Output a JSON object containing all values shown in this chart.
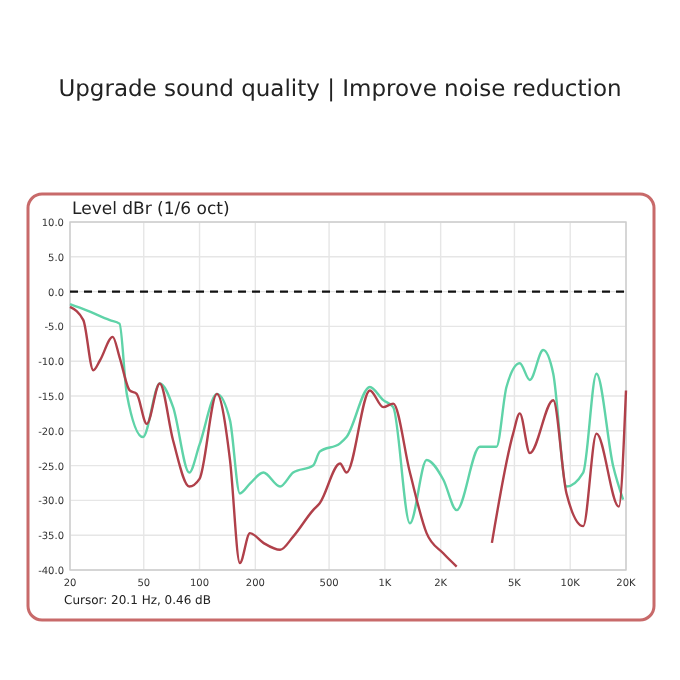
{
  "chart_data": {
    "type": "line",
    "title": "Upgrade sound quality | Improve noise reduction",
    "subtitle": "Level dBr (1/6 oct)",
    "annotations": [
      "Cursor: 20.1 Hz, 0.46 dB"
    ],
    "log": "x",
    "grid": true,
    "marker": "none",
    "line_style": "solid",
    "xlim": [
      20,
      20000
    ],
    "ylim": [
      -40,
      10
    ],
    "xticks": [
      20,
      50,
      100,
      200,
      500,
      {
        "value": 1000,
        "label": "1K"
      },
      {
        "value": 2000,
        "label": "2K"
      },
      {
        "value": 5000,
        "label": "5K"
      },
      {
        "value": 10000,
        "label": "10K"
      },
      {
        "value": 20000,
        "label": "20K"
      }
    ],
    "yticks": [
      {
        "value": 10,
        "label": "10.0"
      },
      {
        "value": 5,
        "label": "5.0"
      },
      {
        "value": 0,
        "label": "0.0"
      },
      {
        "value": -5,
        "label": "-5.0"
      },
      {
        "value": -10,
        "label": "-10.0"
      },
      {
        "value": -15,
        "label": "-15.0"
      },
      {
        "value": -20,
        "label": "-20.0"
      },
      {
        "value": -25,
        "label": "-25.0"
      },
      {
        "value": -30,
        "label": "-30.0"
      },
      {
        "value": -35,
        "label": "-35.0"
      },
      {
        "value": -40,
        "label": "-40.0"
      }
    ],
    "ref_lines": [
      {
        "axis": "y",
        "value": 0,
        "color": "#111111",
        "line_style": "dashed"
      }
    ],
    "series": [
      {
        "color": "#5fd3a8",
        "x": [
          20,
          24.6,
          32.8,
          37,
          40.5,
          49.5,
          61,
          72,
          88,
          100,
          124,
          146,
          165,
          187,
          221,
          272,
          320,
          410,
          445,
          573,
          621,
          830,
          980,
          1109,
          1365,
          1679,
          2065,
          2440,
          3253,
          4000,
          4530,
          5345,
          6055,
          7150,
          8100,
          9550,
          11750,
          13860,
          17060,
          19300
        ],
        "values": [
          -1.8,
          -2.7,
          -4.1,
          -4.6,
          -14.7,
          -20.9,
          -13.2,
          -16.6,
          -26,
          -22,
          -14.7,
          -18.5,
          -29,
          -27.6,
          -26,
          -28,
          -26,
          -25,
          -23,
          -21.8,
          -20.9,
          -13.7,
          -15.6,
          -16.6,
          -33.3,
          -24.2,
          -27,
          -31.4,
          -22.3,
          -22.3,
          -13.7,
          -10.3,
          -12.7,
          -8.4,
          -11.8,
          -28,
          -26,
          -11.8,
          -25.1,
          -29.9
        ]
      },
      {
        "color": "#b0404a",
        "x": [
          20,
          23.6,
          26.7,
          29,
          34,
          37,
          42,
          45.8,
          51.9,
          61,
          72,
          88,
          100,
          124,
          146,
          165,
          187,
          221,
          272,
          320,
          410,
          445,
          573,
          621,
          830,
          980,
          1109,
          1365,
          1679,
          2065,
          2440,
          3000,
          3780,
          4920,
          5345,
          6055,
          8100,
          9550,
          11750,
          13860,
          18300,
          20000
        ],
        "values": [
          -2.2,
          -4.1,
          -11.3,
          -9.9,
          -6.5,
          -9.4,
          -14.2,
          -14.7,
          -19,
          -13.2,
          -21.4,
          -28,
          -26.9,
          -14.7,
          -24.2,
          -39,
          -34.7,
          -36.1,
          -37.1,
          -35.2,
          -31.4,
          -30.4,
          -24.7,
          -26,
          -14.2,
          -16.6,
          -16.1,
          -26,
          -34.7,
          -37.6,
          -39.5,
          null,
          -36.1,
          -20.4,
          -17.5,
          -23.2,
          -15.6,
          -29,
          -33.7,
          -20.4,
          -30.9,
          -14.2
        ]
      }
    ]
  }
}
